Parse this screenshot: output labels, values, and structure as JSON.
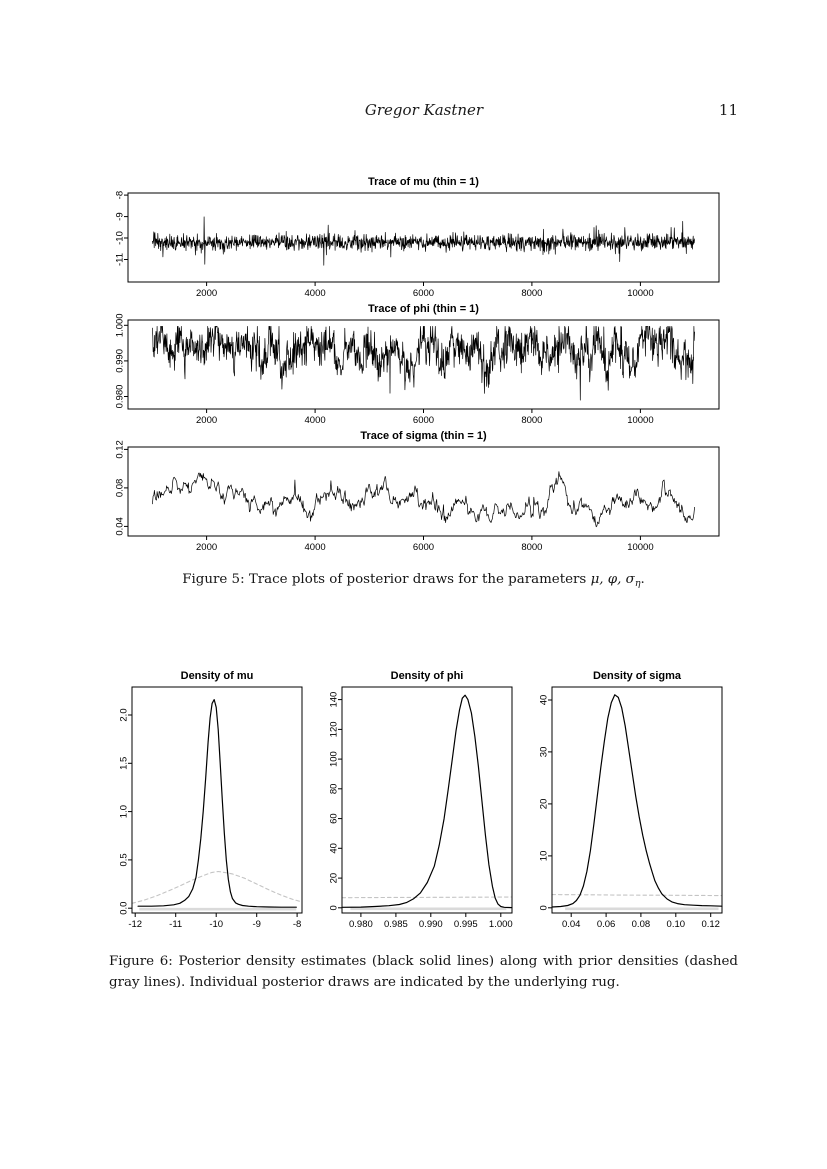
{
  "header": {
    "author": "Gregor Kastner",
    "page_number": "11"
  },
  "figure5": {
    "caption_text": "Figure 5: Trace plots of posterior draws for the parameters ",
    "caption_params": "μ, φ, σ",
    "caption_subscript": "η",
    "caption_end": "."
  },
  "figure6": {
    "caption": "Figure 6: Posterior density estimates (black solid lines) along with prior densities (dashed gray lines). Individual posterior draws are indicated by the underlying rug."
  },
  "colors": {
    "posterior": "#000000",
    "prior": "#c4c4c4",
    "rug": "#dadada",
    "axis": "#000000"
  },
  "chart_data": [
    {
      "kind": "trace",
      "type": "line",
      "title": "Trace of mu (thin = 1)",
      "xlim": [
        550,
        11450
      ],
      "ylim": [
        -12.05,
        -7.9
      ],
      "x_ticks": {
        "values": [
          2000,
          4000,
          6000,
          8000,
          10000
        ],
        "labels": [
          "2000",
          "4000",
          "6000",
          "8000",
          "10000"
        ]
      },
      "y_ticks": {
        "values": [
          -8,
          -9,
          -10,
          -11
        ],
        "labels": [
          "-8",
          "-9",
          "-10",
          "-11"
        ]
      },
      "trace": {
        "x_start": 1000,
        "x_end": 11000,
        "n": 1500,
        "mean": -10.2,
        "sd": 0.19,
        "ar": 0,
        "innov": 0,
        "up_prob": 0.012,
        "up_mag": [
          0.35,
          0.33
        ],
        "down_prob": 0.012,
        "down_mag": [
          0.3,
          0.3
        ],
        "clamp": [
          -11.93,
          -8.05
        ],
        "seed": 42
      }
    },
    {
      "kind": "trace",
      "type": "line",
      "title": "Trace of phi (thin = 1)",
      "xlim": [
        550,
        11450
      ],
      "ylim": [
        0.9765,
        1.0015
      ],
      "x_ticks": {
        "values": [
          2000,
          4000,
          6000,
          8000,
          10000
        ],
        "labels": [
          "2000",
          "4000",
          "6000",
          "8000",
          "10000"
        ]
      },
      "y_ticks": {
        "values": [
          0.98,
          0.99,
          1.0
        ],
        "labels": [
          "0.980",
          "0.990",
          "1.000"
        ]
      },
      "trace": {
        "x_start": 1000,
        "x_end": 11000,
        "n": 1500,
        "mean": 0.9935,
        "sd": 0.0022,
        "ar": 0.9,
        "innov": 0.0012,
        "up_prob": 0.003,
        "up_mag": [
          0.0008,
          0.0008
        ],
        "down_prob": 0.02,
        "down_mag": [
          0.0015,
          0.0022
        ],
        "clamp": [
          0.979,
          0.9997
        ],
        "seed": 7
      }
    },
    {
      "kind": "trace",
      "type": "line",
      "title": "Trace of sigma (thin = 1)",
      "xlim": [
        550,
        11450
      ],
      "ylim": [
        0.03,
        0.1225
      ],
      "x_ticks": {
        "values": [
          2000,
          4000,
          6000,
          8000,
          10000
        ],
        "labels": [
          "2000",
          "4000",
          "6000",
          "8000",
          "10000"
        ]
      },
      "y_ticks": {
        "values": [
          0.04,
          0.08,
          0.12
        ],
        "labels": [
          "0.04",
          "0.08",
          "0.12"
        ]
      },
      "trace": {
        "x_start": 1000,
        "x_end": 11000,
        "n": 800,
        "mean": 0.0645,
        "sd": 0.0013,
        "ar": 0.94,
        "innov": 0.0035,
        "up_prob": 0.006,
        "up_mag": [
          0.003,
          0.006
        ],
        "down_prob": 0.003,
        "down_mag": [
          0.002,
          0.004
        ],
        "clamp": [
          0.0385,
          0.1185
        ],
        "seed": 13
      }
    },
    {
      "kind": "density",
      "type": "line",
      "title": "Density of mu",
      "xlim": [
        -12.08,
        -7.88
      ],
      "ylim": [
        -0.05,
        2.29
      ],
      "x_ticks": {
        "values": [
          -12,
          -11,
          -10,
          -9,
          -8
        ],
        "labels": [
          "-12",
          "-11",
          "-10",
          "-9",
          "-8"
        ]
      },
      "y_ticks": {
        "values": [
          0,
          0.5,
          1,
          1.5,
          2
        ],
        "labels": [
          "0.0",
          "0.5",
          "1.0",
          "1.5",
          "2.0"
        ]
      },
      "rug": [
        -11.9,
        -8.02
      ],
      "series": [
        {
          "name": "prior",
          "style": "dashed",
          "points": [
            [
              -12.08,
              0.05
            ],
            [
              -11.8,
              0.08
            ],
            [
              -11.5,
              0.123
            ],
            [
              -11.2,
              0.175
            ],
            [
              -10.9,
              0.23
            ],
            [
              -10.6,
              0.29
            ],
            [
              -10.3,
              0.34
            ],
            [
              -10.1,
              0.37
            ],
            [
              -9.95,
              0.38
            ],
            [
              -9.8,
              0.37
            ],
            [
              -9.6,
              0.355
            ],
            [
              -9.3,
              0.31
            ],
            [
              -9.0,
              0.25
            ],
            [
              -8.7,
              0.19
            ],
            [
              -8.4,
              0.135
            ],
            [
              -8.1,
              0.09
            ],
            [
              -7.88,
              0.065
            ]
          ]
        },
        {
          "name": "posterior",
          "style": "solid",
          "points": [
            [
              -11.93,
              0.02
            ],
            [
              -11.6,
              0.02
            ],
            [
              -11.3,
              0.025
            ],
            [
              -11.05,
              0.035
            ],
            [
              -10.9,
              0.05
            ],
            [
              -10.78,
              0.08
            ],
            [
              -10.68,
              0.12
            ],
            [
              -10.58,
              0.2
            ],
            [
              -10.5,
              0.32
            ],
            [
              -10.44,
              0.5
            ],
            [
              -10.38,
              0.72
            ],
            [
              -10.32,
              1.0
            ],
            [
              -10.26,
              1.35
            ],
            [
              -10.2,
              1.72
            ],
            [
              -10.15,
              1.97
            ],
            [
              -10.1,
              2.12
            ],
            [
              -10.05,
              2.16
            ],
            [
              -10.0,
              2.08
            ],
            [
              -9.95,
              1.85
            ],
            [
              -9.9,
              1.5
            ],
            [
              -9.85,
              1.12
            ],
            [
              -9.8,
              0.78
            ],
            [
              -9.75,
              0.5
            ],
            [
              -9.7,
              0.3
            ],
            [
              -9.65,
              0.17
            ],
            [
              -9.6,
              0.1
            ],
            [
              -9.52,
              0.055
            ],
            [
              -9.45,
              0.04
            ],
            [
              -9.35,
              0.028
            ],
            [
              -9.2,
              0.02
            ],
            [
              -9.0,
              0.015
            ],
            [
              -8.7,
              0.012
            ],
            [
              -8.4,
              0.01
            ],
            [
              -8.02,
              0.01
            ]
          ]
        }
      ]
    },
    {
      "kind": "density",
      "type": "line",
      "title": "Density of phi",
      "xlim": [
        0.9773,
        1.0016
      ],
      "ylim": [
        -3.5,
        148.5
      ],
      "x_ticks": {
        "values": [
          0.98,
          0.985,
          0.99,
          0.995,
          1.0
        ],
        "labels": [
          "0.980",
          "0.985",
          "0.990",
          "0.995",
          "1.000"
        ]
      },
      "y_ticks": {
        "values": [
          0,
          20,
          40,
          60,
          80,
          100,
          120,
          140
        ],
        "labels": [
          "0",
          "20",
          "40",
          "60",
          "80",
          "100",
          "120",
          "140"
        ]
      },
      "rug": [
        0.9785,
        1.0008
      ],
      "series": [
        {
          "name": "prior",
          "style": "dashed",
          "points": [
            [
              0.9773,
              6.8
            ],
            [
              0.983,
              6.9
            ],
            [
              0.988,
              7.0
            ],
            [
              0.992,
              7.05
            ],
            [
              0.996,
              7.15
            ],
            [
              0.9995,
              7.2
            ],
            [
              1.0016,
              7.25
            ]
          ]
        },
        {
          "name": "posterior",
          "style": "solid",
          "points": [
            [
              0.9773,
              0.3
            ],
            [
              0.98,
              0.5
            ],
            [
              0.982,
              0.9
            ],
            [
              0.984,
              1.4
            ],
            [
              0.9855,
              2.2
            ],
            [
              0.9865,
              3.5
            ],
            [
              0.9875,
              6
            ],
            [
              0.9885,
              10
            ],
            [
              0.9895,
              17
            ],
            [
              0.9905,
              28
            ],
            [
              0.9912,
              42
            ],
            [
              0.9919,
              60
            ],
            [
              0.9925,
              80
            ],
            [
              0.9931,
              101
            ],
            [
              0.9936,
              119
            ],
            [
              0.9941,
              133
            ],
            [
              0.9945,
              141
            ],
            [
              0.9949,
              143
            ],
            [
              0.9953,
              140
            ],
            [
              0.9958,
              131
            ],
            [
              0.9963,
              115
            ],
            [
              0.9968,
              95
            ],
            [
              0.9973,
              72
            ],
            [
              0.9978,
              49
            ],
            [
              0.9983,
              29
            ],
            [
              0.9988,
              14.5
            ],
            [
              0.9992,
              6.5
            ],
            [
              0.9996,
              2.5
            ],
            [
              1.0,
              0.9
            ],
            [
              1.0005,
              0.35
            ],
            [
              1.001,
              0.2
            ],
            [
              1.0016,
              0.12
            ]
          ]
        }
      ]
    },
    {
      "kind": "density",
      "type": "line",
      "title": "Density of sigma",
      "xlim": [
        0.029,
        0.1265
      ],
      "ylim": [
        -1.0,
        42.5
      ],
      "x_ticks": {
        "values": [
          0.04,
          0.06,
          0.08,
          0.1,
          0.12
        ],
        "labels": [
          "0.04",
          "0.06",
          "0.08",
          "0.10",
          "0.12"
        ]
      },
      "y_ticks": {
        "values": [
          0,
          10,
          20,
          30,
          40
        ],
        "labels": [
          "0",
          "10",
          "20",
          "30",
          "40"
        ]
      },
      "rug": [
        0.0365,
        0.1245
      ],
      "series": [
        {
          "name": "prior",
          "style": "dashed",
          "points": [
            [
              0.029,
              2.55
            ],
            [
              0.05,
              2.5
            ],
            [
              0.07,
              2.45
            ],
            [
              0.09,
              2.42
            ],
            [
              0.11,
              2.38
            ],
            [
              0.1265,
              2.35
            ]
          ]
        },
        {
          "name": "posterior",
          "style": "solid",
          "points": [
            [
              0.029,
              0.15
            ],
            [
              0.034,
              0.25
            ],
            [
              0.038,
              0.45
            ],
            [
              0.041,
              0.8
            ],
            [
              0.043,
              1.4
            ],
            [
              0.045,
              2.4
            ],
            [
              0.047,
              4.2
            ],
            [
              0.049,
              7
            ],
            [
              0.051,
              11
            ],
            [
              0.053,
              16
            ],
            [
              0.055,
              21.5
            ],
            [
              0.057,
              27
            ],
            [
              0.059,
              32
            ],
            [
              0.061,
              36.5
            ],
            [
              0.063,
              39.5
            ],
            [
              0.065,
              41
            ],
            [
              0.067,
              40.5
            ],
            [
              0.069,
              38.5
            ],
            [
              0.071,
              35
            ],
            [
              0.073,
              30.5
            ],
            [
              0.075,
              26
            ],
            [
              0.077,
              21.5
            ],
            [
              0.079,
              17.5
            ],
            [
              0.081,
              14
            ],
            [
              0.083,
              11
            ],
            [
              0.085,
              8.5
            ],
            [
              0.0865,
              6.8
            ],
            [
              0.088,
              5.2
            ],
            [
              0.09,
              3.8
            ],
            [
              0.092,
              2.7
            ],
            [
              0.095,
              1.7
            ],
            [
              0.098,
              1.1
            ],
            [
              0.101,
              0.8
            ],
            [
              0.105,
              0.6
            ],
            [
              0.11,
              0.5
            ],
            [
              0.115,
              0.42
            ],
            [
              0.12,
              0.38
            ],
            [
              0.1265,
              0.3
            ]
          ]
        }
      ]
    }
  ]
}
